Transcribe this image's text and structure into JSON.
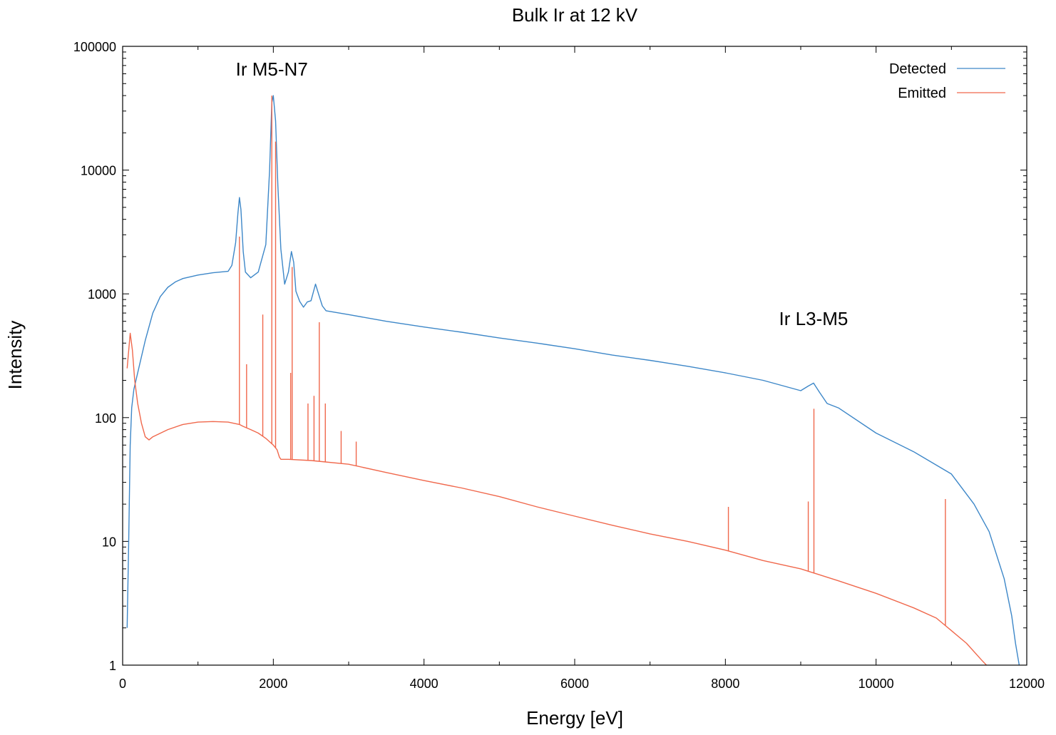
{
  "chart_data": {
    "type": "line",
    "title": "Bulk Ir at 12 kV",
    "xlabel": "Energy [eV]",
    "ylabel": "Intensity",
    "xlim": [
      0,
      12000
    ],
    "ylim": [
      1,
      100000
    ],
    "yscale": "log",
    "grid": false,
    "legend_position": "top-right",
    "x_ticks": [
      0,
      2000,
      4000,
      6000,
      8000,
      10000,
      12000
    ],
    "x_tick_labels": [
      "0",
      "2000",
      "4000",
      "6000",
      "8000",
      "10000",
      "12000"
    ],
    "y_ticks": [
      1,
      10,
      100,
      1000,
      10000,
      100000
    ],
    "y_tick_labels": [
      "1",
      "10",
      "100",
      "1000",
      "10000",
      "100000"
    ],
    "annotations": [
      {
        "text": "Ir M5-N7",
        "x": 1980,
        "y": 58000
      },
      {
        "text": "Ir L3-M5",
        "x": 9170,
        "y": 560
      }
    ],
    "series": [
      {
        "name": "Detected",
        "color": "#3d87c8",
        "x": [
          60,
          80,
          100,
          120,
          150,
          200,
          300,
          400,
          500,
          600,
          700,
          800,
          1000,
          1200,
          1400,
          1450,
          1500,
          1530,
          1550,
          1570,
          1600,
          1630,
          1700,
          1800,
          1900,
          1950,
          1980,
          2000,
          2030,
          2060,
          2100,
          2150,
          2200,
          2240,
          2270,
          2300,
          2350,
          2400,
          2450,
          2500,
          2560,
          2600,
          2650,
          2700,
          3000,
          3500,
          4000,
          4500,
          5000,
          5500,
          6000,
          6500,
          7000,
          7500,
          8000,
          8500,
          9000,
          9100,
          9170,
          9250,
          9350,
          9500,
          10000,
          10500,
          11000,
          11300,
          11500,
          11700,
          11800,
          11850,
          11900
        ],
        "values": [
          2,
          10,
          60,
          120,
          170,
          230,
          420,
          700,
          950,
          1130,
          1250,
          1330,
          1420,
          1480,
          1520,
          1700,
          2600,
          4500,
          6000,
          4800,
          2200,
          1500,
          1350,
          1500,
          2500,
          10000,
          35000,
          40000,
          25000,
          7500,
          2300,
          1200,
          1500,
          2200,
          1800,
          1050,
          870,
          780,
          860,
          880,
          1200,
          1000,
          800,
          730,
          680,
          600,
          540,
          490,
          440,
          400,
          360,
          320,
          290,
          260,
          230,
          200,
          165,
          180,
          190,
          160,
          130,
          120,
          75,
          53,
          35,
          20,
          12,
          5,
          2.5,
          1.5,
          1
        ]
      },
      {
        "name": "Emitted",
        "color": "#f0684c",
        "x": [
          60,
          100,
          130,
          160,
          200,
          250,
          300,
          350,
          400,
          600,
          800,
          1000,
          1200,
          1400,
          1550,
          1600,
          1700,
          1800,
          1900,
          2000,
          2050,
          2080,
          2100,
          2200,
          2500,
          3000,
          3500,
          4000,
          4500,
          5000,
          5500,
          6000,
          6500,
          7000,
          7500,
          8000,
          8500,
          9000,
          9500,
          10000,
          10500,
          10800,
          11000,
          11200,
          11400,
          11500
        ],
        "values": [
          250,
          480,
          350,
          200,
          130,
          90,
          70,
          66,
          70,
          80,
          88,
          92,
          93,
          92,
          88,
          85,
          80,
          75,
          68,
          60,
          55,
          48,
          46,
          46,
          45,
          42,
          36,
          31,
          27,
          23,
          19,
          16,
          13.5,
          11.5,
          10,
          8.5,
          7,
          6,
          4.8,
          3.8,
          2.9,
          2.4,
          1.9,
          1.5,
          1.1,
          0.95
        ]
      }
    ],
    "emission_peaks": [
      {
        "x": 1550,
        "y": 2900
      },
      {
        "x": 1645,
        "y": 270
      },
      {
        "x": 1860,
        "y": 680
      },
      {
        "x": 1980,
        "y": 40000
      },
      {
        "x": 2030,
        "y": 17000
      },
      {
        "x": 2230,
        "y": 230
      },
      {
        "x": 2250,
        "y": 1650
      },
      {
        "x": 2460,
        "y": 130
      },
      {
        "x": 2540,
        "y": 150
      },
      {
        "x": 2610,
        "y": 590
      },
      {
        "x": 2690,
        "y": 130
      },
      {
        "x": 2900,
        "y": 78
      },
      {
        "x": 3100,
        "y": 64
      },
      {
        "x": 8040,
        "y": 19
      },
      {
        "x": 9100,
        "y": 21
      },
      {
        "x": 9175,
        "y": 118
      },
      {
        "x": 10920,
        "y": 22
      }
    ]
  }
}
